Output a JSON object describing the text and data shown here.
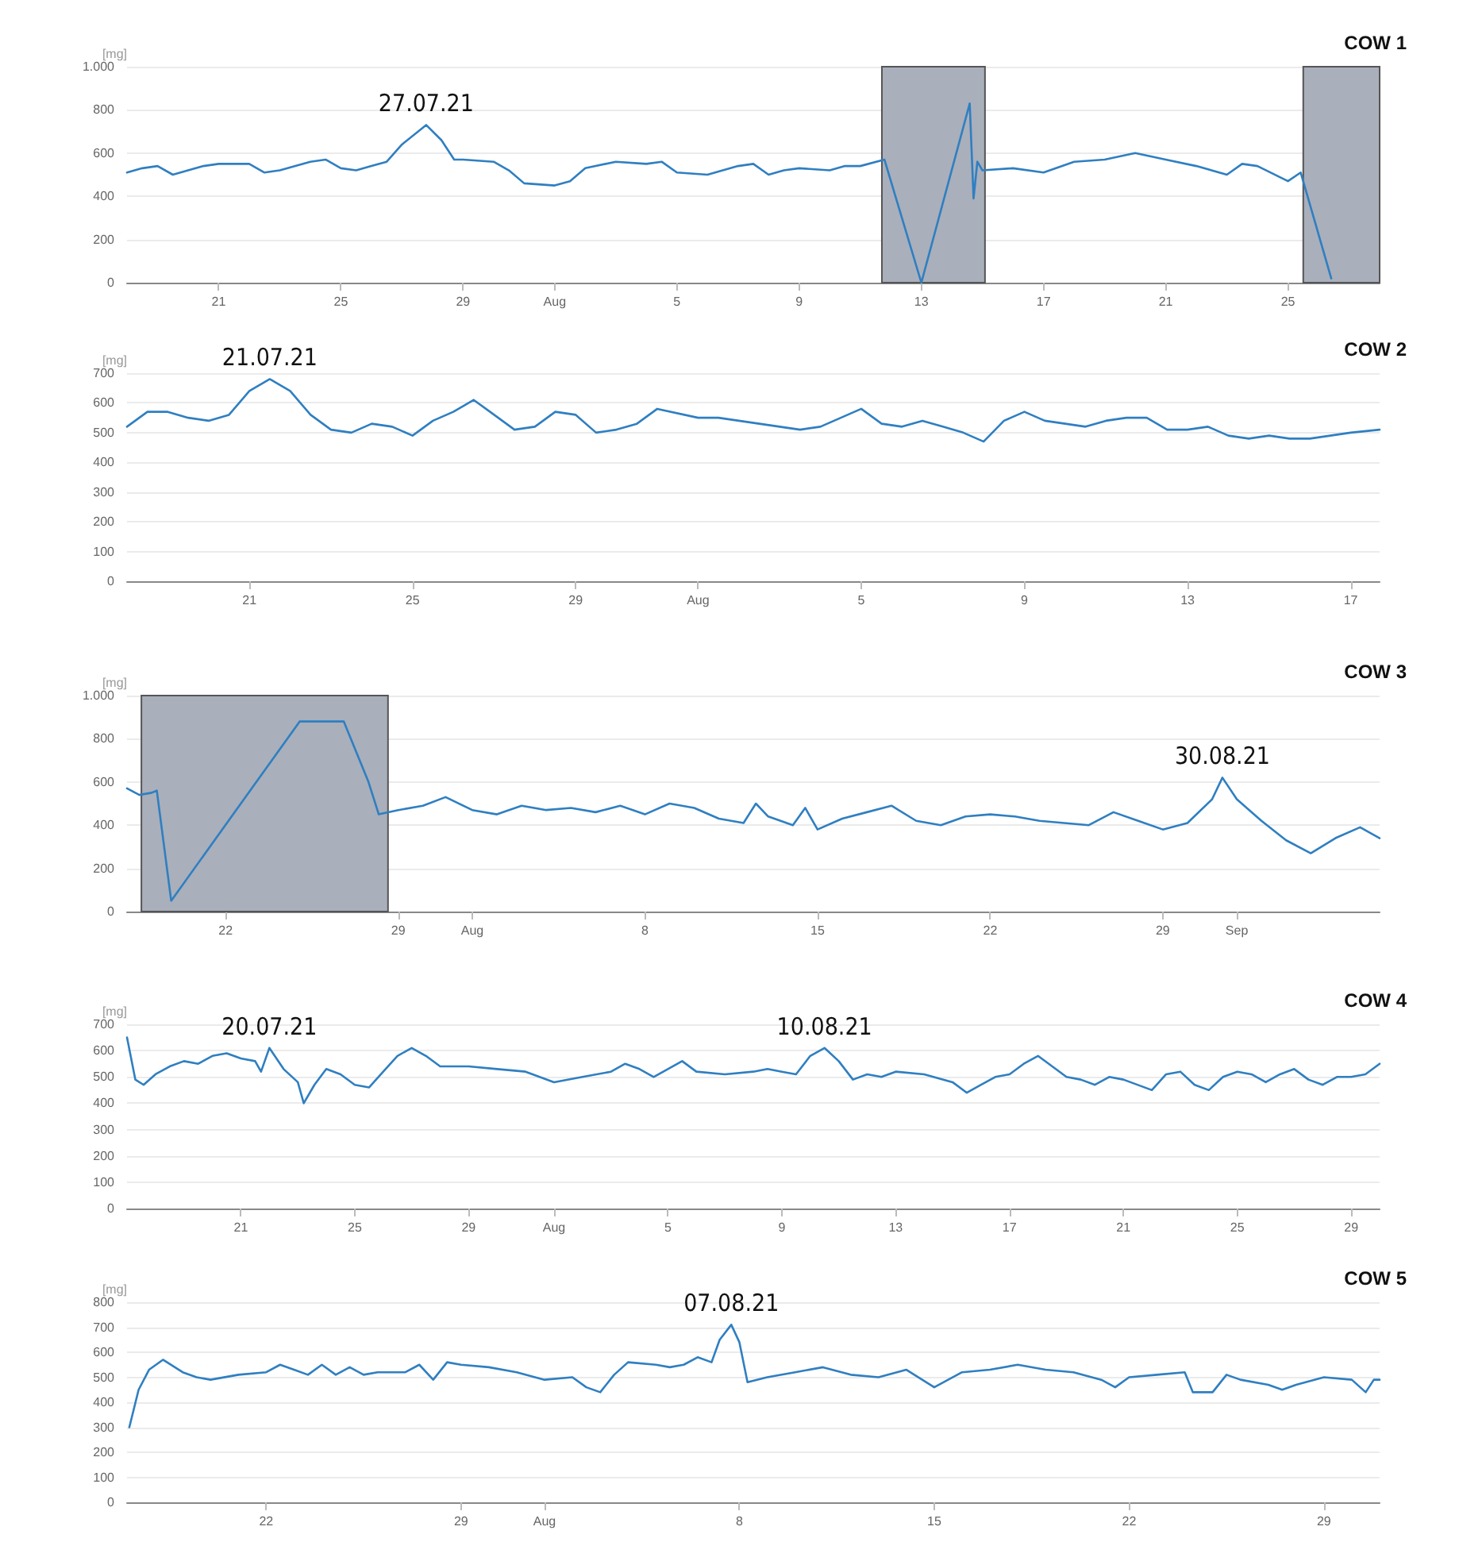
{
  "chart_data": [
    {
      "type": "line",
      "title": "COW 1",
      "ylabel": "[mg]",
      "marker": "none",
      "grid": "y",
      "xlim": [
        "--07-18",
        "--08-28"
      ],
      "xticks": [
        {
          "value": "--07-21",
          "label": "21"
        },
        {
          "value": "--07-25",
          "label": "25"
        },
        {
          "value": "--07-29",
          "label": "29"
        },
        {
          "value": "--08-01",
          "label": "Aug"
        },
        {
          "value": "--08-05",
          "label": "5"
        },
        {
          "value": "--08-09",
          "label": "9"
        },
        {
          "value": "--08-13",
          "label": "13"
        },
        {
          "value": "--08-17",
          "label": "17"
        },
        {
          "value": "--08-21",
          "label": "21"
        },
        {
          "value": "--08-25",
          "label": "25"
        }
      ],
      "ylim": [
        0,
        1000
      ],
      "yticks": [
        0,
        200,
        400,
        600,
        800,
        {
          "value": 1000,
          "label": "1.000"
        }
      ],
      "bands": [
        {
          "axis": "x",
          "from": "--08-11T17:00",
          "to": "--08-15T02:00",
          "color": "#a9afbb"
        },
        {
          "axis": "x",
          "from": "--08-25T12:00",
          "to": "--08-28",
          "color": "#a9afbb"
        }
      ],
      "annotations": [
        {
          "text": "27.07.21",
          "x": "--07-27T19:00",
          "y": 730
        }
      ],
      "x": [
        "--07-18",
        "--07-18T12:00",
        "--07-19",
        "--07-19T12:00",
        "--07-20",
        "--07-20T12:00",
        "--07-21",
        "--07-22",
        "--07-22T12:00",
        "--07-23",
        "--07-24",
        "--07-24T12:00",
        "--07-25",
        "--07-25T12:00",
        "--07-26",
        "--07-26T12:00",
        "--07-27",
        "--07-27T19:00",
        "--07-28T07:00",
        "--07-28T17:00",
        "--07-29",
        "--07-30",
        "--07-30T12:00",
        "--07-31",
        "--08-01",
        "--08-01T12:00",
        "--08-02",
        "--08-03",
        "--08-04",
        "--08-04T12:00",
        "--08-05",
        "--08-06",
        "--08-07",
        "--08-07T12:00",
        "--08-08",
        "--08-08T12:00",
        "--08-09",
        "--08-10",
        "--08-10T12:00",
        "--08-11",
        "--08-11T19:00",
        "--08-13",
        "--08-14T14:00",
        "--08-14T17:00",
        "--08-14T20:00",
        "--08-15",
        "--08-16",
        "--08-17",
        "--08-18",
        "--08-19",
        "--08-20",
        "--08-21",
        "--08-22",
        "--08-23",
        "--08-23T12:00",
        "--08-24",
        "--08-25",
        "--08-25T10:00",
        "--08-26T10:00"
      ],
      "series": [
        {
          "color": "#2f7fc1",
          "values": [
            510,
            530,
            540,
            500,
            520,
            540,
            550,
            550,
            510,
            520,
            560,
            570,
            530,
            520,
            540,
            560,
            640,
            730,
            660,
            570,
            570,
            560,
            520,
            460,
            450,
            470,
            530,
            560,
            550,
            560,
            510,
            500,
            540,
            550,
            500,
            520,
            530,
            520,
            540,
            540,
            570,
            0,
            830,
            390,
            560,
            520,
            530,
            510,
            560,
            570,
            600,
            570,
            540,
            500,
            550,
            540,
            470,
            510,
            20
          ]
        }
      ]
    },
    {
      "type": "line",
      "title": "COW 2",
      "ylabel": "[mg]",
      "marker": "none",
      "grid": "y",
      "xlim": [
        "--07-18",
        "--08-17T17:00"
      ],
      "xticks": [
        {
          "value": "--07-21",
          "label": "21"
        },
        {
          "value": "--07-25",
          "label": "25"
        },
        {
          "value": "--07-29",
          "label": "29"
        },
        {
          "value": "--08-01",
          "label": "Aug"
        },
        {
          "value": "--08-05",
          "label": "5"
        },
        {
          "value": "--08-09",
          "label": "9"
        },
        {
          "value": "--08-13",
          "label": "13"
        },
        {
          "value": "--08-17",
          "label": "17"
        }
      ],
      "ylim": [
        0,
        700
      ],
      "yticks": [
        0,
        100,
        200,
        300,
        400,
        500,
        600,
        700
      ],
      "annotations": [
        {
          "text": "21.07.21",
          "x": "--07-21T12:00",
          "y": 680
        }
      ],
      "x": [
        "--07-18",
        "--07-18T12:00",
        "--07-19",
        "--07-19T12:00",
        "--07-20",
        "--07-20T12:00",
        "--07-21",
        "--07-21T12:00",
        "--07-22",
        "--07-22T12:00",
        "--07-23",
        "--07-23T12:00",
        "--07-24",
        "--07-24T12:00",
        "--07-25",
        "--07-25T12:00",
        "--07-26",
        "--07-26T12:00",
        "--07-27",
        "--07-27T12:00",
        "--07-28",
        "--07-28T12:00",
        "--07-29",
        "--07-29T12:00",
        "--07-30",
        "--07-30T12:00",
        "--07-31",
        "--08-01",
        "--08-01T12:00",
        "--08-02",
        "--08-02T12:00",
        "--08-03",
        "--08-03T12:00",
        "--08-04",
        "--08-04T12:00",
        "--08-05",
        "--08-05T12:00",
        "--08-06",
        "--08-06T12:00",
        "--08-07",
        "--08-07T12:00",
        "--08-08",
        "--08-08T12:00",
        "--08-09",
        "--08-09T12:00",
        "--08-10",
        "--08-10T12:00",
        "--08-11",
        "--08-11T12:00",
        "--08-12",
        "--08-12T12:00",
        "--08-13",
        "--08-13T12:00",
        "--08-14",
        "--08-14T12:00",
        "--08-15",
        "--08-15T12:00",
        "--08-16",
        "--08-16T12:00",
        "--08-17",
        "--08-17T17:00"
      ],
      "series": [
        {
          "color": "#2f7fc1",
          "values": [
            520,
            570,
            570,
            550,
            540,
            560,
            640,
            680,
            640,
            560,
            510,
            500,
            530,
            520,
            490,
            540,
            570,
            610,
            560,
            510,
            520,
            570,
            560,
            500,
            510,
            530,
            580,
            550,
            550,
            540,
            530,
            520,
            510,
            520,
            550,
            580,
            530,
            520,
            540,
            520,
            500,
            470,
            540,
            570,
            540,
            530,
            520,
            540,
            550,
            550,
            510,
            510,
            520,
            490,
            480,
            490,
            480,
            480,
            490,
            500,
            510
          ]
        }
      ]
    },
    {
      "type": "line",
      "title": "COW 3",
      "ylabel": "[mg]",
      "marker": "none",
      "grid": "y",
      "xlim": [
        "--07-18",
        "--09-06T19:00"
      ],
      "xticks": [
        {
          "value": "--07-22",
          "label": "22"
        },
        {
          "value": "--07-29",
          "label": "29"
        },
        {
          "value": "--08-01",
          "label": "Aug"
        },
        {
          "value": "--08-08",
          "label": "8"
        },
        {
          "value": "--08-15",
          "label": "15"
        },
        {
          "value": "--08-22",
          "label": "22"
        },
        {
          "value": "--08-29",
          "label": "29"
        },
        {
          "value": "--09-01",
          "label": "Sep"
        }
      ],
      "ylim": [
        0,
        1000
      ],
      "yticks": [
        0,
        200,
        400,
        600,
        800,
        {
          "value": 1000,
          "label": "1.000"
        }
      ],
      "bands": [
        {
          "axis": "x",
          "from": "--07-18T14:00",
          "to": "--07-28T14:00",
          "color": "#a9afbb"
        }
      ],
      "annotations": [
        {
          "text": "30.08.21",
          "x": "--08-31T10:00",
          "y": 620
        }
      ],
      "x": [
        "--07-18",
        "--07-18T12:00",
        "--07-19",
        "--07-19T05:00",
        "--07-19T19:00",
        "--07-25",
        "--07-26T19:00",
        "--07-27T19:00",
        "--07-28T05:00",
        "--07-29",
        "--07-30",
        "--07-30T22:00",
        "--08-01",
        "--08-02",
        "--08-03",
        "--08-04",
        "--08-05",
        "--08-06",
        "--08-07",
        "--08-08",
        "--08-09",
        "--08-10",
        "--08-11",
        "--08-12",
        "--08-12T12:00",
        "--08-13",
        "--08-14",
        "--08-14T12:00",
        "--08-15",
        "--08-16",
        "--08-17",
        "--08-18",
        "--08-19",
        "--08-20",
        "--08-21",
        "--08-22",
        "--08-23",
        "--08-24",
        "--08-25",
        "--08-26",
        "--08-27",
        "--08-28",
        "--08-29",
        "--08-30",
        "--08-31",
        "--08-31T10:00",
        "--09-01",
        "--09-02",
        "--09-03",
        "--09-04",
        "--09-05",
        "--09-06",
        "--09-06T19:00"
      ],
      "series": [
        {
          "color": "#2f7fc1",
          "values": [
            570,
            540,
            550,
            560,
            50,
            880,
            880,
            600,
            450,
            470,
            490,
            530,
            470,
            450,
            490,
            470,
            480,
            460,
            490,
            450,
            500,
            480,
            430,
            410,
            500,
            440,
            400,
            480,
            380,
            430,
            460,
            490,
            420,
            400,
            440,
            450,
            440,
            420,
            410,
            400,
            460,
            420,
            380,
            410,
            520,
            620,
            520,
            420,
            330,
            270,
            340,
            390,
            340
          ]
        }
      ]
    },
    {
      "type": "line",
      "title": "COW 4",
      "ylabel": "[mg]",
      "marker": "none",
      "grid": "y",
      "xlim": [
        "--07-17",
        "--08-30"
      ],
      "xticks": [
        {
          "value": "--07-21",
          "label": "21"
        },
        {
          "value": "--07-25",
          "label": "25"
        },
        {
          "value": "--07-29",
          "label": "29"
        },
        {
          "value": "--08-01",
          "label": "Aug"
        },
        {
          "value": "--08-05",
          "label": "5"
        },
        {
          "value": "--08-09",
          "label": "9"
        },
        {
          "value": "--08-13",
          "label": "13"
        },
        {
          "value": "--08-17",
          "label": "17"
        },
        {
          "value": "--08-21",
          "label": "21"
        },
        {
          "value": "--08-25",
          "label": "25"
        },
        {
          "value": "--08-29",
          "label": "29"
        }
      ],
      "ylim": [
        0,
        700
      ],
      "yticks": [
        0,
        100,
        200,
        300,
        400,
        500,
        600,
        700
      ],
      "annotations": [
        {
          "text": "20.07.21",
          "x": "--07-22",
          "y": 610
        },
        {
          "text": "10.08.21",
          "x": "--08-10T12:00",
          "y": 610
        }
      ],
      "x": [
        "--07-17",
        "--07-17T07:00",
        "--07-17T14:00",
        "--07-18",
        "--07-18T12:00",
        "--07-19",
        "--07-19T12:00",
        "--07-20",
        "--07-20T12:00",
        "--07-21",
        "--07-21T12:00",
        "--07-21T17:00",
        "--07-22",
        "--07-22T12:00",
        "--07-23",
        "--07-23T05:00",
        "--07-23T14:00",
        "--07-24",
        "--07-24T12:00",
        "--07-25",
        "--07-25T12:00",
        "--07-26",
        "--07-26T12:00",
        "--07-27",
        "--07-27T12:00",
        "--07-28",
        "--07-28T12:00",
        "--07-29",
        "--07-30",
        "--07-31",
        "--08-01",
        "--08-02",
        "--08-03",
        "--08-03T12:00",
        "--08-04",
        "--08-04T12:00",
        "--08-05",
        "--08-05T12:00",
        "--08-06",
        "--08-07",
        "--08-08",
        "--08-08T12:00",
        "--08-09",
        "--08-09T12:00",
        "--08-10",
        "--08-10T12:00",
        "--08-11",
        "--08-11T12:00",
        "--08-12",
        "--08-12T12:00",
        "--08-13",
        "--08-14",
        "--08-15",
        "--08-15T12:00",
        "--08-16",
        "--08-16T12:00",
        "--08-17",
        "--08-17T12:00",
        "--08-18",
        "--08-18T12:00",
        "--08-19",
        "--08-19T12:00",
        "--08-20",
        "--08-20T12:00",
        "--08-21",
        "--08-22",
        "--08-22T12:00",
        "--08-23",
        "--08-23T12:00",
        "--08-24",
        "--08-24T12:00",
        "--08-25",
        "--08-25T12:00",
        "--08-26",
        "--08-26T12:00",
        "--08-27",
        "--08-27T12:00",
        "--08-28",
        "--08-28T12:00",
        "--08-29",
        "--08-29T12:00",
        "--08-30"
      ],
      "series": [
        {
          "color": "#2f7fc1",
          "values": [
            650,
            490,
            470,
            510,
            540,
            560,
            550,
            580,
            590,
            570,
            560,
            520,
            610,
            530,
            480,
            400,
            470,
            530,
            510,
            470,
            460,
            520,
            580,
            610,
            580,
            540,
            540,
            540,
            530,
            520,
            480,
            500,
            520,
            550,
            530,
            500,
            530,
            560,
            520,
            510,
            520,
            530,
            520,
            510,
            580,
            610,
            560,
            490,
            510,
            500,
            520,
            510,
            480,
            440,
            470,
            500,
            510,
            550,
            580,
            540,
            500,
            490,
            470,
            500,
            490,
            450,
            510,
            520,
            470,
            450,
            500,
            520,
            510,
            480,
            510,
            530,
            490,
            470,
            500,
            500,
            510,
            550
          ]
        }
      ]
    },
    {
      "type": "line",
      "title": "COW 5",
      "ylabel": "[mg]",
      "marker": "none",
      "grid": "y",
      "xlim": [
        "--07-17",
        "--08-31"
      ],
      "xticks": [
        {
          "value": "--07-22",
          "label": "22"
        },
        {
          "value": "--07-29",
          "label": "29"
        },
        {
          "value": "--08-01",
          "label": "Aug"
        },
        {
          "value": "--08-08",
          "label": "8"
        },
        {
          "value": "--08-15",
          "label": "15"
        },
        {
          "value": "--08-22",
          "label": "22"
        },
        {
          "value": "--08-29",
          "label": "29"
        }
      ],
      "ylim": [
        0,
        800
      ],
      "yticks": [
        0,
        100,
        200,
        300,
        400,
        500,
        600,
        700,
        800
      ],
      "annotations": [
        {
          "text": "07.08.21",
          "x": "--08-07T17:00",
          "y": 710
        }
      ],
      "x": [
        "--07-17T02:00",
        "--07-17T10:00",
        "--07-17T19:00",
        "--07-18T07:00",
        "--07-19",
        "--07-19T12:00",
        "--07-20",
        "--07-21",
        "--07-22",
        "--07-22T12:00",
        "--07-23",
        "--07-23T12:00",
        "--07-24",
        "--07-24T12:00",
        "--07-25",
        "--07-25T12:00",
        "--07-26",
        "--07-27",
        "--07-27T12:00",
        "--07-28",
        "--07-28T12:00",
        "--07-29",
        "--07-30",
        "--07-31",
        "--08-01",
        "--08-02",
        "--08-02T12:00",
        "--08-03",
        "--08-03T12:00",
        "--08-04",
        "--08-05",
        "--08-05T12:00",
        "--08-06",
        "--08-06T12:00",
        "--08-07",
        "--08-07T07:00",
        "--08-07T17:00",
        "--08-08",
        "--08-08T07:00",
        "--08-09",
        "--08-10",
        "--08-11",
        "--08-12",
        "--08-13",
        "--08-14",
        "--08-15",
        "--08-16",
        "--08-17",
        "--08-18",
        "--08-19",
        "--08-20",
        "--08-21",
        "--08-21T12:00",
        "--08-22",
        "--08-23",
        "--08-24",
        "--08-24T07:00",
        "--08-25",
        "--08-25T12:00",
        "--08-26",
        "--08-27",
        "--08-27T12:00",
        "--08-28",
        "--08-29",
        "--08-30",
        "--08-30T12:00",
        "--08-30T19:00",
        "--08-31"
      ],
      "series": [
        {
          "color": "#2f7fc1",
          "values": [
            300,
            450,
            530,
            570,
            520,
            500,
            490,
            510,
            520,
            550,
            530,
            510,
            550,
            510,
            540,
            510,
            520,
            520,
            550,
            490,
            560,
            550,
            540,
            520,
            490,
            500,
            460,
            440,
            510,
            560,
            550,
            540,
            550,
            580,
            560,
            650,
            710,
            640,
            480,
            500,
            520,
            540,
            510,
            500,
            530,
            460,
            520,
            530,
            550,
            530,
            520,
            490,
            460,
            500,
            510,
            520,
            440,
            440,
            510,
            490,
            470,
            450,
            470,
            500,
            490,
            440,
            490,
            490
          ]
        }
      ]
    }
  ]
}
